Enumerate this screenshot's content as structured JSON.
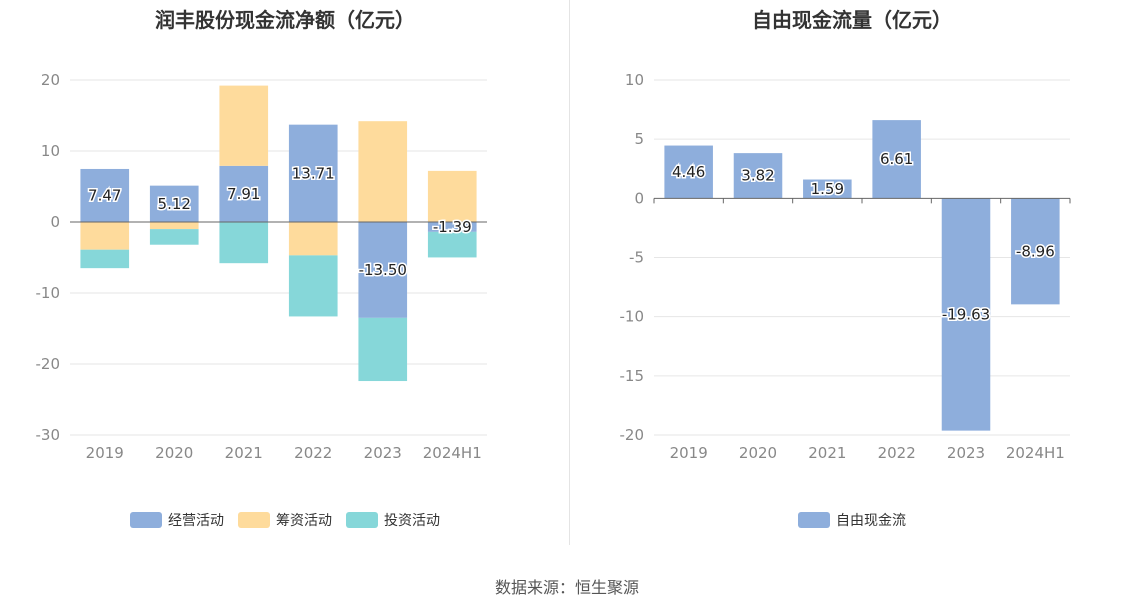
{
  "source_text": "数据来源：恒生聚源",
  "chart_data": [
    {
      "type": "bar",
      "stacked": true,
      "title": "润丰股份现金流净额（亿元）",
      "categories": [
        "2019",
        "2020",
        "2021",
        "2022",
        "2023",
        "2024H1"
      ],
      "ylim": [
        -30,
        20
      ],
      "yticks": [
        20,
        10,
        0,
        -10,
        -20,
        -30
      ],
      "grid": true,
      "legend_position": "bottom",
      "series": [
        {
          "name": "经营活动",
          "color": "#8eaedc",
          "values": [
            7.47,
            5.12,
            7.91,
            13.71,
            -13.5,
            -1.39
          ],
          "labels": [
            "7.47",
            "5.12",
            "7.91",
            "13.71",
            "-13.50",
            "-1.39"
          ]
        },
        {
          "name": "筹资活动",
          "color": "#fedb9c",
          "values": [
            -3.9,
            -1.0,
            11.3,
            -4.7,
            14.2,
            7.2
          ]
        },
        {
          "name": "投资活动",
          "color": "#86d7d9",
          "values": [
            -2.6,
            -2.2,
            -5.8,
            -8.6,
            -8.9,
            -3.6
          ]
        }
      ]
    },
    {
      "type": "bar",
      "title": "自由现金流量（亿元）",
      "categories": [
        "2019",
        "2020",
        "2021",
        "2022",
        "2023",
        "2024H1"
      ],
      "ylim": [
        -20,
        10
      ],
      "yticks": [
        10,
        5,
        0,
        -5,
        -10,
        -15,
        -20
      ],
      "grid": true,
      "legend_position": "bottom",
      "series": [
        {
          "name": "自由现金流",
          "color": "#8eaedc",
          "values": [
            4.46,
            3.82,
            1.59,
            6.61,
            -19.63,
            -8.96
          ],
          "labels": [
            "4.46",
            "3.82",
            "1.59",
            "6.61",
            "-19.63",
            "-8.96"
          ]
        }
      ]
    }
  ]
}
